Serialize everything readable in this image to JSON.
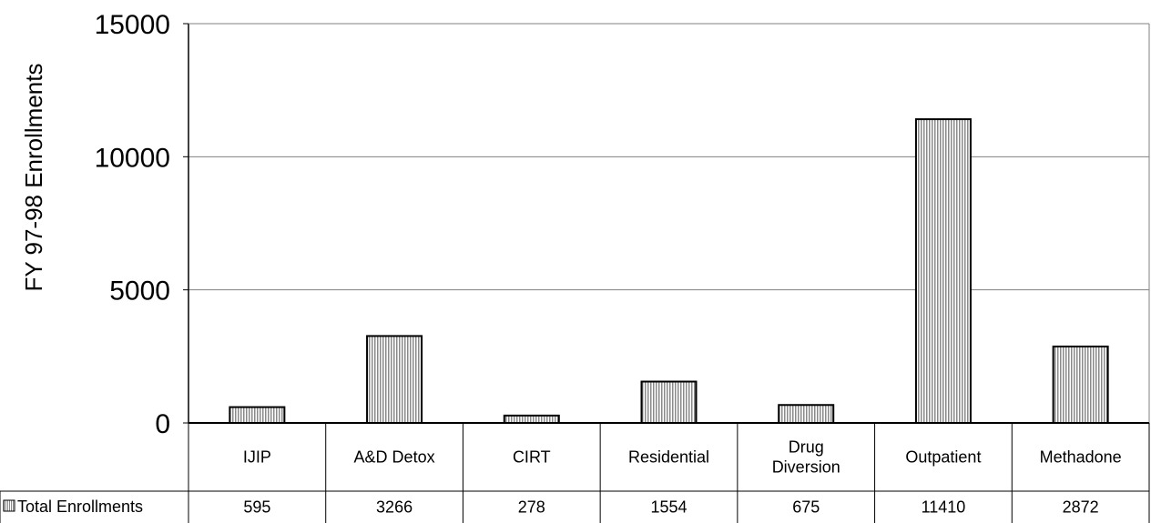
{
  "chart_data": {
    "type": "bar",
    "ylabel": "FY 97-98 Enrollments",
    "xlabel": "",
    "ylim": [
      0,
      15000
    ],
    "yticks": [
      "0",
      "5000",
      "10000",
      "15000"
    ],
    "grid": true,
    "categories": [
      [
        "IJIP"
      ],
      [
        "A&D Detox"
      ],
      [
        "CIRT"
      ],
      [
        "Residential"
      ],
      [
        "Drug",
        "Diversion"
      ],
      [
        "Outpatient"
      ],
      [
        "Methadone"
      ]
    ],
    "series": [
      {
        "name": "Total Enrollments",
        "values": [
          595,
          3266,
          278,
          1554,
          675,
          11410,
          2872
        ]
      }
    ],
    "data_table": true,
    "colors": {
      "bar_fill": "#c8c8c8",
      "bar_stroke": "#000000",
      "grid": "#808080",
      "axis": "#000000"
    }
  }
}
